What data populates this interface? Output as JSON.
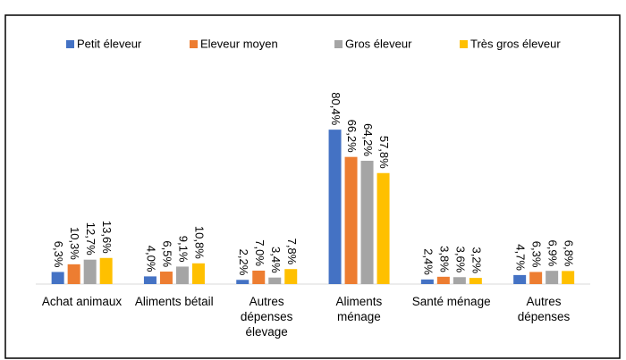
{
  "chart_data": {
    "type": "bar",
    "categories": [
      "Achat animaux",
      "Aliments bétail",
      "Autres\ndépenses\nélevage",
      "Aliments\nménage",
      "Santé ménage",
      "Autres\ndépenses"
    ],
    "series": [
      {
        "name": "Petit éleveur",
        "color": "#4472c4",
        "values": [
          6.3,
          4.0,
          2.2,
          80.4,
          2.4,
          4.7
        ],
        "value_labels": [
          "6,3%",
          "4,0%",
          "2,2%",
          "80,4%",
          "2,4%",
          "4,7%"
        ]
      },
      {
        "name": "Eleveur moyen",
        "color": "#ed7d31",
        "values": [
          10.3,
          6.5,
          7.0,
          66.2,
          3.8,
          6.3
        ],
        "value_labels": [
          "10,3%",
          "6,5%",
          "7,0%",
          "66,2%",
          "3,8%",
          "6,3%"
        ]
      },
      {
        "name": "Gros éleveur",
        "color": "#a5a5a5",
        "values": [
          12.7,
          9.1,
          3.4,
          64.2,
          3.6,
          6.9
        ],
        "value_labels": [
          "12,7%",
          "9,1%",
          "3,4%",
          "64,2%",
          "3,6%",
          "6,9%"
        ]
      },
      {
        "name": "Très gros éleveur",
        "color": "#ffc000",
        "values": [
          13.6,
          10.8,
          7.8,
          57.8,
          3.2,
          6.8
        ],
        "value_labels": [
          "13,6%",
          "10,8%",
          "7,8%",
          "57,8%",
          "3,2%",
          "6,8%"
        ]
      }
    ],
    "legend": "top"
  }
}
